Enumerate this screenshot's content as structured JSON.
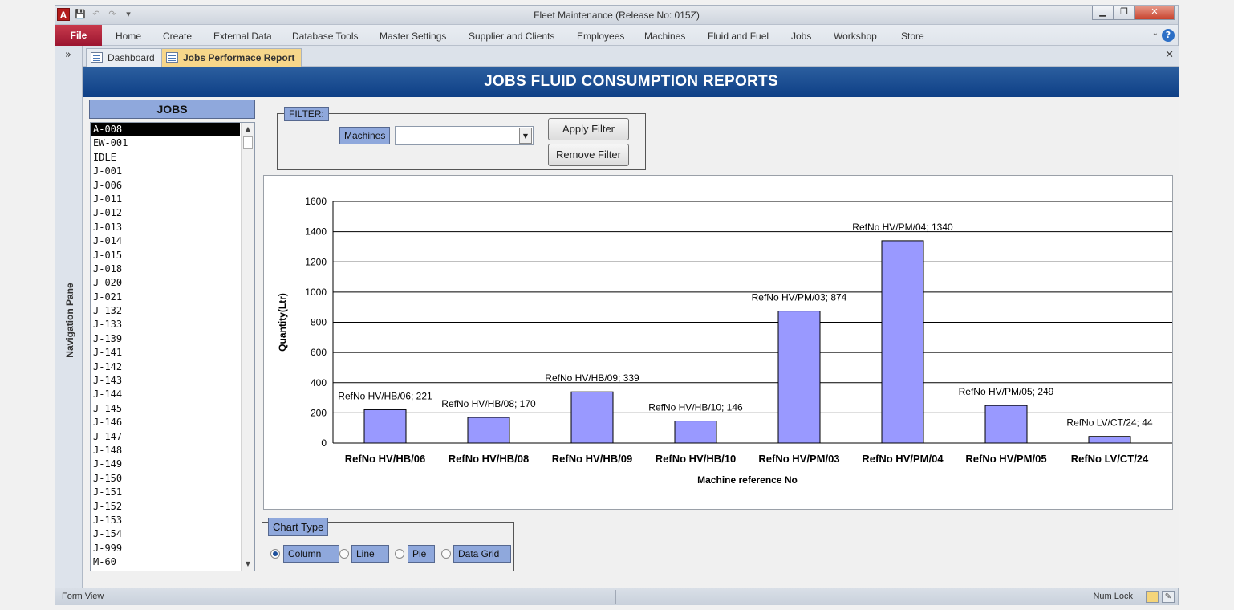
{
  "window": {
    "title": "Fleet Maintenance (Release No: 015Z)",
    "app_icon": "A"
  },
  "ribbon": {
    "file": "File",
    "tabs": [
      "Home",
      "Create",
      "External Data",
      "Database Tools",
      "Master Settings",
      "Supplier and Clients",
      "Employees",
      "Machines",
      "Fluid and Fuel",
      "Jobs",
      "Workshop",
      "Store"
    ]
  },
  "nav": {
    "toggle": "»",
    "label": "Navigation Pane"
  },
  "doctabs": [
    {
      "label": "Dashboard",
      "active": false
    },
    {
      "label": "Jobs Performace Report",
      "active": true
    }
  ],
  "form": {
    "title": "JOBS FLUID CONSUMPTION REPORTS",
    "jobs_header": "JOBS",
    "jobs": [
      "A-008",
      "EW-001",
      "IDLE",
      "J-001",
      "J-006",
      "J-011",
      "J-012",
      "J-013",
      "J-014",
      "J-015",
      "J-018",
      "J-020",
      "J-021",
      "J-132",
      "J-133",
      "J-139",
      "J-141",
      "J-142",
      "J-143",
      "J-144",
      "J-145",
      "J-146",
      "J-147",
      "J-148",
      "J-149",
      "J-150",
      "J-151",
      "J-152",
      "J-153",
      "J-154",
      "J-999",
      "M-60"
    ],
    "selected_job": "A-008",
    "filter": {
      "legend": "FILTER:",
      "machines_label": "Machines",
      "machines_value": "",
      "apply": "Apply Filter",
      "remove": "Remove Filter"
    },
    "chart_type": {
      "legend": "Chart Type",
      "options": [
        "Column",
        "Line",
        "Pie",
        "Data Grid"
      ],
      "selected": "Column"
    }
  },
  "chart_data": {
    "type": "bar",
    "categories": [
      "RefNo HV/HB/06",
      "RefNo HV/HB/08",
      "RefNo HV/HB/09",
      "RefNo HV/HB/10",
      "RefNo HV/PM/03",
      "RefNo HV/PM/04",
      "RefNo HV/PM/05",
      "RefNo LV/CT/24"
    ],
    "values": [
      221,
      170,
      339,
      146,
      874,
      1340,
      249,
      44
    ],
    "data_labels": [
      "RefNo HV/HB/06; 221",
      "RefNo HV/HB/08; 170",
      "RefNo HV/HB/09; 339",
      "RefNo HV/HB/10; 146",
      "RefNo HV/PM/03; 874",
      "RefNo HV/PM/04; 1340",
      "RefNo HV/PM/05; 249",
      "RefNo LV/CT/24; 44"
    ],
    "xlabel": "Machine reference No",
    "ylabel": "Quantity(Ltr)",
    "ylim": [
      0,
      1600
    ],
    "yticks": [
      0,
      200,
      400,
      600,
      800,
      1000,
      1200,
      1400,
      1600
    ],
    "grid": true,
    "bar_color": "#9999ff"
  },
  "status": {
    "left": "Form View",
    "right": "Num Lock"
  }
}
